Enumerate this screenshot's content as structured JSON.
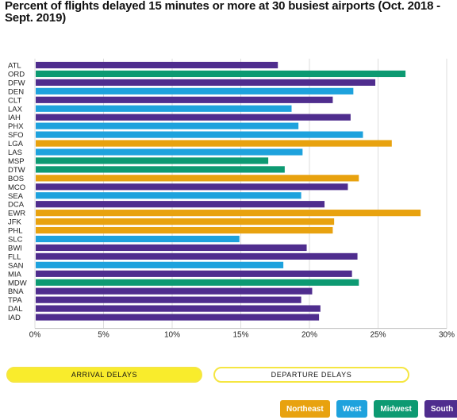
{
  "title": "Percent of flights delayed 15 minutes or more at 30 busiest airports (Oct. 2018 - Sept. 2019)",
  "buttons": {
    "arrival": "ARRIVAL DELAYS",
    "departure": "DEPARTURE DELAYS"
  },
  "legend": [
    {
      "key": "Northeast",
      "label": "Northeast",
      "color": "#e8a20f"
    },
    {
      "key": "West",
      "label": "West",
      "color": "#1ea2dd"
    },
    {
      "key": "Midwest",
      "label": "Midwest",
      "color": "#0d9a72"
    },
    {
      "key": "South",
      "label": "South",
      "color": "#4f2d8e"
    }
  ],
  "chart_data": {
    "type": "bar",
    "orientation": "horizontal",
    "xlim": [
      0,
      30
    ],
    "xticks": [
      "0%",
      "5%",
      "10%",
      "15%",
      "20%",
      "25%",
      "30%"
    ],
    "categories": [
      "ATL",
      "ORD",
      "DFW",
      "DEN",
      "CLT",
      "LAX",
      "IAH",
      "PHX",
      "SFO",
      "LGA",
      "LAS",
      "MSP",
      "DTW",
      "BOS",
      "MCO",
      "SEA",
      "DCA",
      "EWR",
      "JFK",
      "PHL",
      "SLC",
      "BWI",
      "FLL",
      "SAN",
      "MIA",
      "MDW",
      "BNA",
      "TPA",
      "DAL",
      "IAD"
    ],
    "values": [
      17.7,
      27.0,
      24.8,
      23.2,
      21.7,
      18.7,
      23.0,
      19.2,
      23.9,
      26.0,
      19.5,
      17.0,
      18.2,
      23.6,
      22.8,
      19.4,
      21.1,
      28.1,
      21.8,
      21.7,
      14.9,
      19.8,
      23.5,
      18.1,
      23.1,
      23.6,
      20.2,
      19.4,
      20.8,
      20.7
    ],
    "regions": [
      "South",
      "Midwest",
      "South",
      "West",
      "South",
      "West",
      "South",
      "West",
      "West",
      "Northeast",
      "West",
      "Midwest",
      "Midwest",
      "Northeast",
      "South",
      "West",
      "South",
      "Northeast",
      "Northeast",
      "Northeast",
      "West",
      "South",
      "South",
      "West",
      "South",
      "Midwest",
      "South",
      "South",
      "South",
      "South"
    ]
  }
}
